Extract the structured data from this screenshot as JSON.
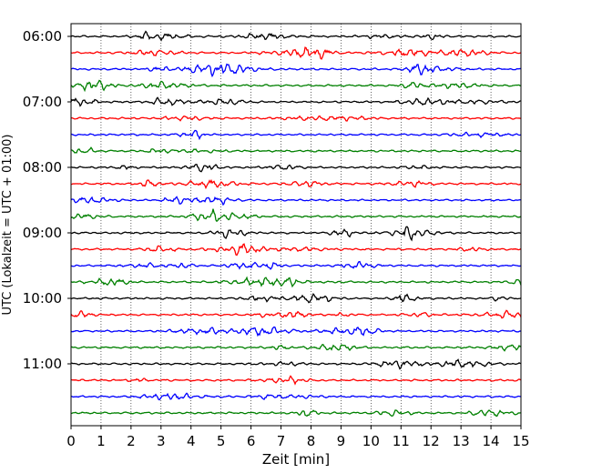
{
  "chart_data": {
    "type": "line",
    "title": "",
    "xlabel": "Zeit  [min]",
    "ylabel": "UTC (Lokalzeit = UTC + 01:00)",
    "xlim": [
      0,
      15
    ],
    "x_ticks": [
      "0",
      "1",
      "2",
      "3",
      "4",
      "5",
      "6",
      "7",
      "8",
      "9",
      "10",
      "11",
      "12",
      "13",
      "14",
      "15"
    ],
    "y_tick_labels": [
      "06:00",
      "07:00",
      "08:00",
      "09:00",
      "10:00",
      "11:00"
    ],
    "grid": "vertical dotted lines at each minute",
    "traces": [
      {
        "start": "06:00",
        "color": "#000000"
      },
      {
        "start": "06:15",
        "color": "#ff0000"
      },
      {
        "start": "06:30",
        "color": "#0000ff"
      },
      {
        "start": "06:45",
        "color": "#008000"
      },
      {
        "start": "07:00",
        "color": "#000000"
      },
      {
        "start": "07:15",
        "color": "#ff0000"
      },
      {
        "start": "07:30",
        "color": "#0000ff"
      },
      {
        "start": "07:45",
        "color": "#008000"
      },
      {
        "start": "08:00",
        "color": "#000000"
      },
      {
        "start": "08:15",
        "color": "#ff0000"
      },
      {
        "start": "08:30",
        "color": "#0000ff"
      },
      {
        "start": "08:45",
        "color": "#008000"
      },
      {
        "start": "09:00",
        "color": "#000000"
      },
      {
        "start": "09:15",
        "color": "#ff0000"
      },
      {
        "start": "09:30",
        "color": "#0000ff"
      },
      {
        "start": "09:45",
        "color": "#008000"
      },
      {
        "start": "10:00",
        "color": "#000000"
      },
      {
        "start": "10:15",
        "color": "#ff0000"
      },
      {
        "start": "10:30",
        "color": "#0000ff"
      },
      {
        "start": "10:45",
        "color": "#008000"
      },
      {
        "start": "11:00",
        "color": "#000000"
      },
      {
        "start": "11:15",
        "color": "#ff0000"
      },
      {
        "start": "11:30",
        "color": "#0000ff"
      },
      {
        "start": "11:45",
        "color": "#008000"
      }
    ]
  }
}
